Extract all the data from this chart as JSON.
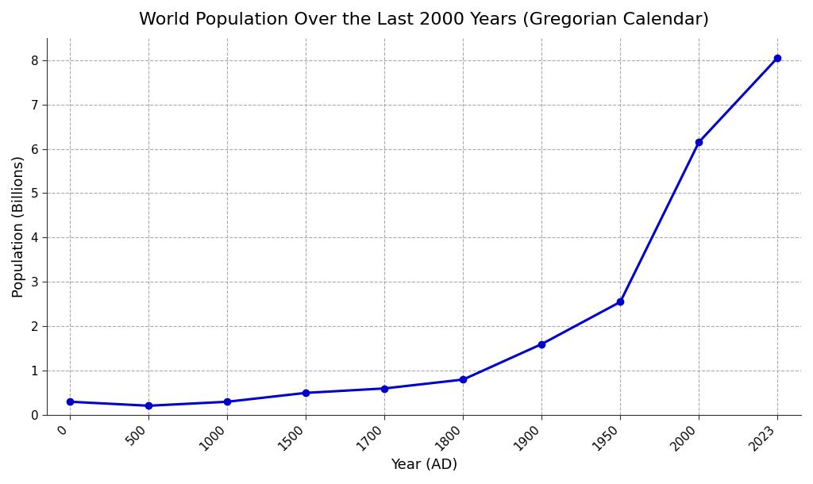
{
  "title": "World Population Over the Last 2000 Years (Gregorian Calendar)",
  "xlabel": "Year (AD)",
  "ylabel": "Population (Billions)",
  "population": [
    0.3,
    0.21,
    0.3,
    0.5,
    0.6,
    0.8,
    1.6,
    2.55,
    6.15,
    8.05
  ],
  "line_color": "#0000cc",
  "marker": "o",
  "marker_size": 6,
  "line_width": 2.2,
  "xtick_labels": [
    "0",
    "500",
    "1000",
    "1500",
    "1700",
    "1800",
    "1900",
    "1950",
    "2000",
    "2023"
  ],
  "ylim": [
    0,
    8.5
  ],
  "grid_color": "#aaaaaa",
  "grid_style": "--",
  "background_color": "#ffffff",
  "title_fontsize": 16,
  "axis_label_fontsize": 13,
  "tick_fontsize": 11
}
